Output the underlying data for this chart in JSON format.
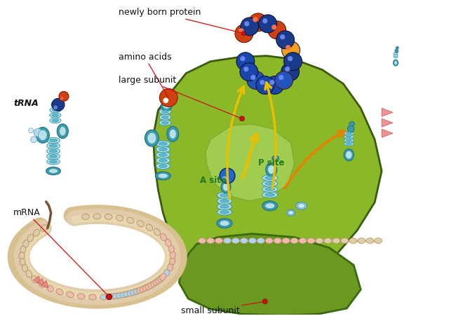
{
  "background_color": "#ffffff",
  "labels": {
    "newly_born_protein": "newly born protein",
    "amino_acids": "amino acids",
    "large_subunit": "large subunit",
    "small_subunit": "small subunit",
    "tRNA": "tRNA",
    "mRNA": "mRNA",
    "A_site": "A site",
    "P_site": "P site"
  },
  "colors": {
    "ribosome_large": "#8ab828",
    "ribosome_large_edge": "#3a5a10",
    "ribosome_inner": "#9acc40",
    "ribosome_small": "#6a9820",
    "ribosome_small_edge": "#3a6a10",
    "tRNA_teal": "#3a9aaa",
    "tRNA_light": "#b8e0ea",
    "tRNA_medium": "#5ab8c8",
    "tRNA_dark": "#207080",
    "amino_orange": "#d04010",
    "amino_orange_hi": "#f06030",
    "amino_dark_blue": "#1a3a8a",
    "amino_blue_hi": "#6080cc",
    "amino_gold": "#f0a020",
    "mRNA_tan": "#e0ccaa",
    "mRNA_tan_edge": "#c8a870",
    "mRNA_backbone": "#a87840",
    "mRNA_pink": "#f0bab0",
    "mRNA_blue": "#b0d4f0",
    "mRNA_green": "#c0e0b0",
    "mRNA_segment_edge": "#b09060",
    "arrow_yellow": "#e8c000",
    "arrow_orange": "#e88000",
    "label_red": "#cc1111",
    "pink_arrow": "#e88888",
    "pink_arrow_edge": "#cc5555",
    "white": "#ffffff",
    "black": "#111111",
    "site_green": "#227722",
    "small_blue": "#88ccdd",
    "small_blue_edge": "#4488aa"
  },
  "figsize": [
    6.4,
    4.51
  ],
  "dpi": 100
}
